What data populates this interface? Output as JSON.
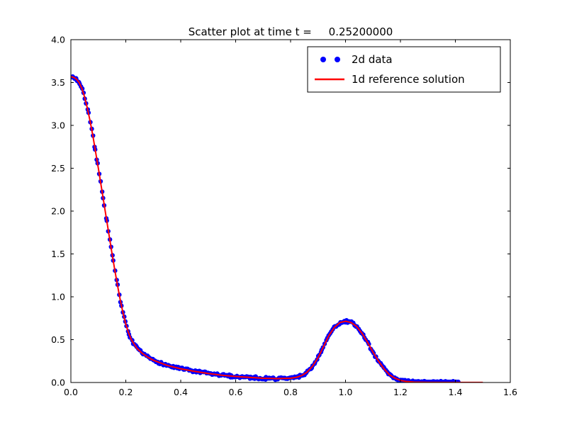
{
  "background": "#ffffff",
  "chart_data": {
    "type": "scatter",
    "title": "Scatter plot at time t =     0.25200000",
    "xlabel": "",
    "ylabel": "",
    "xlim": [
      0.0,
      1.6
    ],
    "ylim": [
      0.0,
      4.0
    ],
    "grid": false,
    "x_ticks": [
      0.0,
      0.2,
      0.4,
      0.6,
      0.8,
      1.0,
      1.2,
      1.4,
      1.6
    ],
    "x_tick_labels": [
      "0.0",
      "0.2",
      "0.4",
      "0.6",
      "0.8",
      "1.0",
      "1.2",
      "1.4",
      "1.6"
    ],
    "y_ticks": [
      0.0,
      0.5,
      1.0,
      1.5,
      2.0,
      2.5,
      3.0,
      3.5,
      4.0
    ],
    "y_tick_labels": [
      "0.0",
      "0.5",
      "1.0",
      "1.5",
      "2.0",
      "2.5",
      "3.0",
      "3.5",
      "4.0"
    ],
    "legend": {
      "position": "upper right",
      "entries": [
        {
          "label": "2d data",
          "type": "scatter",
          "color": "#0000ff"
        },
        {
          "label": "1d reference solution",
          "type": "line",
          "color": "#ff0000"
        }
      ]
    },
    "series": [
      {
        "name": "1d reference solution",
        "type": "line",
        "color": "#ff0000",
        "line_width": 2,
        "x": [
          0.0,
          0.01,
          0.02,
          0.03,
          0.04,
          0.05,
          0.06,
          0.07,
          0.08,
          0.09,
          0.1,
          0.11,
          0.12,
          0.13,
          0.14,
          0.15,
          0.16,
          0.17,
          0.18,
          0.19,
          0.2,
          0.21,
          0.22,
          0.24,
          0.26,
          0.28,
          0.3,
          0.35,
          0.4,
          0.45,
          0.5,
          0.55,
          0.6,
          0.65,
          0.7,
          0.75,
          0.8,
          0.82,
          0.84,
          0.86,
          0.88,
          0.9,
          0.92,
          0.94,
          0.96,
          0.98,
          1.0,
          1.02,
          1.04,
          1.06,
          1.08,
          1.1,
          1.12,
          1.14,
          1.16,
          1.18,
          1.2,
          1.22,
          1.25,
          1.3,
          1.4,
          1.5
        ],
        "y": [
          3.57,
          3.56,
          3.54,
          3.5,
          3.43,
          3.33,
          3.2,
          3.05,
          2.88,
          2.69,
          2.5,
          2.3,
          2.1,
          1.9,
          1.7,
          1.5,
          1.31,
          1.13,
          0.96,
          0.81,
          0.68,
          0.58,
          0.5,
          0.4,
          0.34,
          0.295,
          0.26,
          0.2,
          0.16,
          0.13,
          0.105,
          0.085,
          0.07,
          0.06,
          0.05,
          0.045,
          0.05,
          0.06,
          0.08,
          0.12,
          0.19,
          0.29,
          0.42,
          0.55,
          0.645,
          0.7,
          0.715,
          0.7,
          0.655,
          0.575,
          0.47,
          0.355,
          0.25,
          0.16,
          0.09,
          0.05,
          0.025,
          0.012,
          0.005,
          0.002,
          0.001,
          0.001
        ]
      },
      {
        "name": "2d data",
        "type": "scatter",
        "color": "#0000ff",
        "marker": "circle",
        "marker_radius": 3.2,
        "derived_from": "1d reference solution",
        "n_points": 300,
        "x_range": [
          0.0,
          1.41
        ],
        "y_jitter": 0.03,
        "x_jitter": 0.004,
        "seed": 7
      }
    ]
  }
}
